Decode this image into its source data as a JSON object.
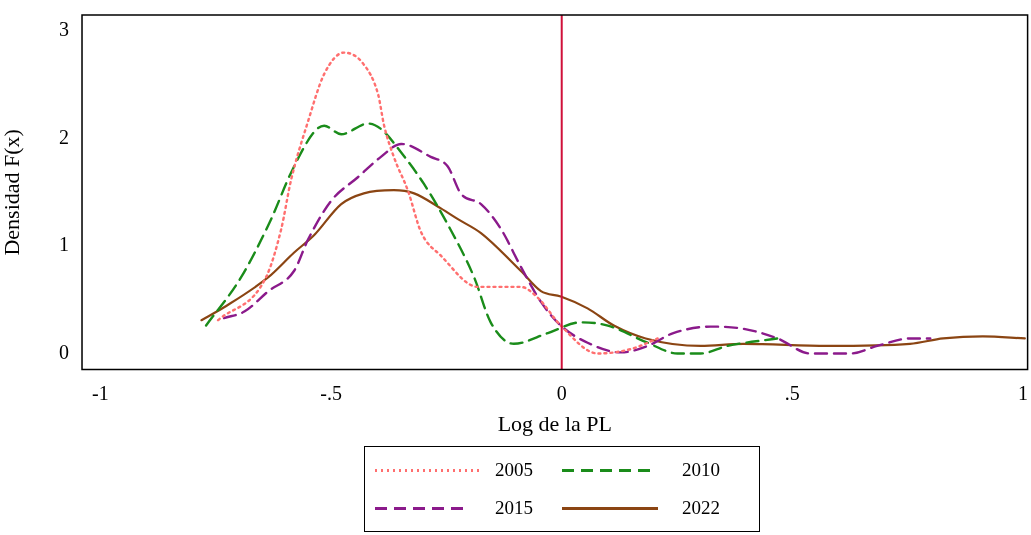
{
  "chart_data": {
    "type": "line",
    "xlabel": "Log de la PL",
    "ylabel": "Densidad F(x)",
    "xlim": [
      -1.04,
      1.01
    ],
    "xticks": [
      -1,
      {
        "value": -0.5,
        "label": "-.5"
      },
      0,
      {
        "value": 0.5,
        "label": ".5"
      },
      1
    ],
    "ylim": [
      -0.15,
      3.15
    ],
    "yticks": [
      0,
      1,
      2,
      3
    ],
    "grid": false,
    "legend": "bottom",
    "marker": "none",
    "ref_lines": [
      {
        "axis": "x",
        "value": 0,
        "color": "#d0103a",
        "line_style": "solid"
      }
    ],
    "series": [
      {
        "name": "2005",
        "color": "#ff6f6f",
        "line_style": "dotted",
        "x": [
          -0.745,
          -0.641,
          -0.608,
          -0.587,
          -0.55,
          -0.515,
          -0.472,
          -0.431,
          -0.398,
          -0.385,
          -0.364,
          -0.333,
          -0.305,
          -0.262,
          -0.182,
          -0.089,
          -0.052,
          -0.002,
          0.078,
          0.149,
          0.208
        ],
        "values": [
          0.31,
          0.71,
          1.16,
          1.61,
          2.16,
          2.6,
          2.8,
          2.7,
          2.41,
          2.12,
          1.83,
          1.51,
          1.13,
          0.91,
          0.62,
          0.62,
          0.52,
          0.26,
          0.0,
          0.04,
          0.14
        ]
      },
      {
        "name": "2010",
        "color": "#1a8c1a",
        "line_style": "dashed",
        "x": [
          -0.771,
          -0.695,
          -0.63,
          -0.587,
          -0.537,
          -0.515,
          -0.478,
          -0.42,
          -0.392,
          -0.348,
          -0.299,
          -0.247,
          -0.19,
          -0.154,
          -0.104,
          -0.03,
          0.041,
          0.1,
          0.186,
          0.251,
          0.301,
          0.359,
          0.468
        ],
        "values": [
          0.26,
          0.71,
          1.25,
          1.68,
          2.06,
          2.12,
          2.04,
          2.14,
          2.09,
          1.87,
          1.58,
          1.2,
          0.71,
          0.29,
          0.09,
          0.19,
          0.29,
          0.26,
          0.1,
          0.0,
          0.0,
          0.07,
          0.14
        ]
      },
      {
        "name": "2015",
        "color": "#8b1a8b",
        "line_style": "dashed",
        "x": [
          -0.732,
          -0.688,
          -0.636,
          -0.58,
          -0.55,
          -0.5,
          -0.442,
          -0.392,
          -0.348,
          -0.284,
          -0.247,
          -0.219,
          -0.175,
          -0.132,
          -0.089,
          -0.045,
          -0.002,
          0.056,
          0.128,
          0.186,
          0.242,
          0.323,
          0.394,
          0.468,
          0.539,
          0.626,
          0.684,
          0.755,
          0.799
        ],
        "values": [
          0.33,
          0.39,
          0.58,
          0.77,
          1.06,
          1.42,
          1.64,
          1.83,
          1.95,
          1.83,
          1.74,
          1.49,
          1.39,
          1.16,
          0.81,
          0.48,
          0.26,
          0.1,
          0.01,
          0.07,
          0.19,
          0.25,
          0.23,
          0.14,
          0.0,
          0.0,
          0.07,
          0.14,
          0.14
        ]
      },
      {
        "name": "2022",
        "color": "#8b4513",
        "line_style": "solid",
        "x": [
          -0.781,
          -0.732,
          -0.636,
          -0.58,
          -0.537,
          -0.478,
          -0.429,
          -0.364,
          -0.32,
          -0.262,
          -0.225,
          -0.175,
          -0.089,
          -0.045,
          -0.002,
          0.056,
          0.113,
          0.182,
          0.301,
          0.394,
          0.576,
          0.755,
          0.827,
          0.913,
          1.004
        ],
        "values": [
          0.31,
          0.43,
          0.71,
          0.94,
          1.1,
          1.39,
          1.49,
          1.52,
          1.49,
          1.35,
          1.25,
          1.12,
          0.77,
          0.58,
          0.53,
          0.42,
          0.26,
          0.14,
          0.07,
          0.09,
          0.07,
          0.09,
          0.14,
          0.16,
          0.14
        ]
      }
    ]
  }
}
